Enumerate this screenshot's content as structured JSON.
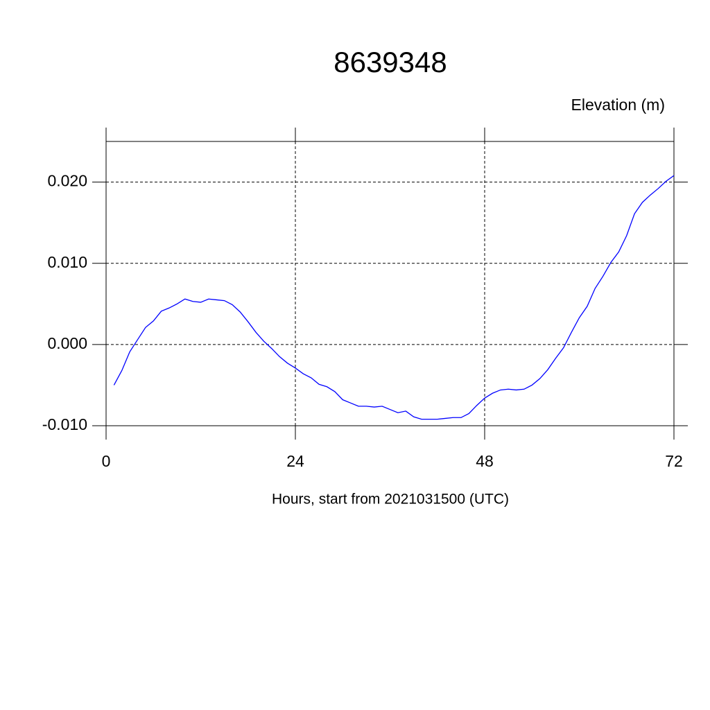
{
  "chart_data": {
    "type": "line",
    "title": "8639348",
    "subtitle": "Elevation (m)",
    "x_label": "Hours, start from 2021031500 (UTC)",
    "x": [
      1,
      2,
      3,
      4,
      5,
      6,
      7,
      8,
      9,
      10,
      11,
      12,
      13,
      14,
      15,
      16,
      17,
      18,
      19,
      20,
      21,
      22,
      23,
      24,
      25,
      26,
      27,
      28,
      29,
      30,
      31,
      32,
      33,
      34,
      35,
      36,
      37,
      38,
      39,
      40,
      41,
      42,
      43,
      44,
      45,
      46,
      47,
      48,
      49,
      50,
      51,
      52,
      53,
      54,
      55,
      56,
      57,
      58,
      59,
      60,
      61,
      62,
      63,
      64,
      65,
      66,
      67,
      68,
      69,
      70,
      71,
      72
    ],
    "values": [
      -0.005,
      -0.0032,
      -0.0009,
      0.0006,
      0.0021,
      0.0029,
      0.0041,
      0.0045,
      0.005,
      0.0056,
      0.0053,
      0.0052,
      0.0056,
      0.0055,
      0.0054,
      0.0049,
      0.004,
      0.0028,
      0.0015,
      0.0004,
      -0.0005,
      -0.0015,
      -0.0023,
      -0.0029,
      -0.0036,
      -0.0041,
      -0.0049,
      -0.0052,
      -0.0058,
      -0.0068,
      -0.0072,
      -0.0076,
      -0.0076,
      -0.0077,
      -0.0076,
      -0.008,
      -0.0084,
      -0.0082,
      -0.0089,
      -0.0092,
      -0.0092,
      -0.0092,
      -0.0091,
      -0.009,
      -0.009,
      -0.0085,
      -0.0075,
      -0.0066,
      -0.006,
      -0.0056,
      -0.0055,
      -0.0056,
      -0.0055,
      -0.005,
      -0.0042,
      -0.0031,
      -0.0017,
      -0.0004,
      0.0015,
      0.0033,
      0.0047,
      0.0069,
      0.0084,
      0.0101,
      0.0114,
      0.0134,
      0.0161,
      0.0175,
      0.0184,
      0.0192,
      0.0201,
      0.0208
    ],
    "color": "#0000ff",
    "xlim": [
      0,
      72
    ],
    "xticks": [
      0,
      24,
      48,
      72
    ],
    "ylim": [
      -0.01,
      0.025
    ],
    "yticks": [
      {
        "value": -0.01,
        "label": "-0.010"
      },
      {
        "value": 0,
        "label": "0.000"
      },
      {
        "value": 0.01,
        "label": "0.010"
      },
      {
        "value": 0.02,
        "label": "0.020"
      }
    ],
    "grid": true
  }
}
